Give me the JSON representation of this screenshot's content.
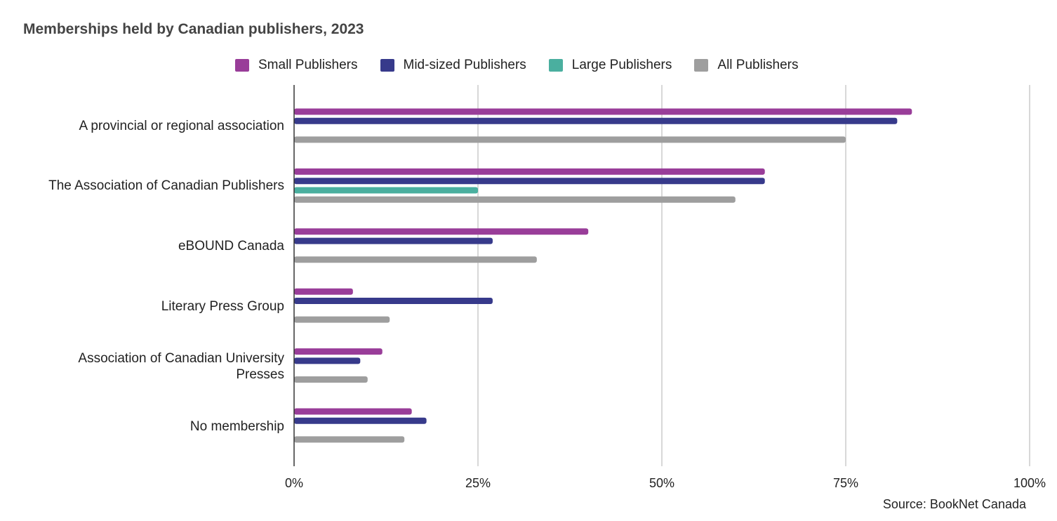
{
  "chart_data": {
    "type": "bar",
    "orientation": "horizontal",
    "title": "Memberships held by Canadian publishers, 2023",
    "categories": [
      "A provincial or regional association",
      "The Association of Canadian Publishers",
      "eBOUND Canada",
      "Literary Press Group",
      "Association of Canadian University Presses",
      "No membership"
    ],
    "series": [
      {
        "name": "Small Publishers",
        "color": "#993d99",
        "values": [
          84,
          64,
          40,
          8,
          12,
          16
        ]
      },
      {
        "name": "Mid-sized Publishers",
        "color": "#373a8b",
        "values": [
          82,
          64,
          27,
          27,
          9,
          18
        ]
      },
      {
        "name": "Large Publishers",
        "color": "#4aaf9f",
        "values": [
          0,
          25,
          0,
          0,
          0,
          0
        ]
      },
      {
        "name": "All Publishers",
        "color": "#9e9e9e",
        "values": [
          75,
          60,
          33,
          13,
          10,
          15
        ]
      }
    ],
    "xlim": [
      0,
      100
    ],
    "xticks": [
      "0%",
      "25%",
      "50%",
      "75%",
      "100%"
    ],
    "grid": true,
    "legend_position": "top",
    "source": "Source: BookNet Canada"
  }
}
